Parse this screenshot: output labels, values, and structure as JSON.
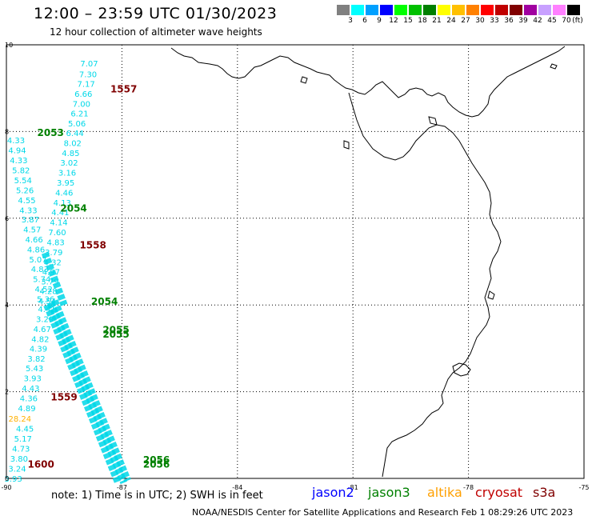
{
  "header": {
    "title": "12:00 – 23:59 UTC 01/30/2023",
    "subtitle": "12 hour collection of altimeter wave heights"
  },
  "legend": {
    "unit": "(ft)",
    "bins": [
      {
        "label": "3",
        "color": "#808080"
      },
      {
        "label": "6",
        "color": "#00ffff"
      },
      {
        "label": "9",
        "color": "#00a0ff"
      },
      {
        "label": "12",
        "color": "#0000ff"
      },
      {
        "label": "15",
        "color": "#00ff00"
      },
      {
        "label": "18",
        "color": "#00c000"
      },
      {
        "label": "21",
        "color": "#008000"
      },
      {
        "label": "24",
        "color": "#ffff00"
      },
      {
        "label": "27",
        "color": "#ffc000"
      },
      {
        "label": "30",
        "color": "#ff8000"
      },
      {
        "label": "33",
        "color": "#ff0000"
      },
      {
        "label": "36",
        "color": "#c00000"
      },
      {
        "label": "39",
        "color": "#800000"
      },
      {
        "label": "42",
        "color": "#a000a0"
      },
      {
        "label": "45",
        "color": "#c8a0ff"
      },
      {
        "label": "70",
        "color": "#ff80ff"
      },
      {
        "label": "",
        "color": "#000000"
      }
    ]
  },
  "map": {
    "x_ticks": [
      "-90",
      "-87",
      "-84",
      "-81",
      "-78",
      "-75"
    ],
    "y_ticks": [
      "0",
      "2",
      "4",
      "6",
      "8",
      "10"
    ],
    "colors": {
      "cyan": "#00d8e8",
      "gold": "#ffb000",
      "green": "#008000",
      "darkred": "#800000"
    },
    "pass_labels": [
      {
        "text": "1557",
        "color": "darkred",
        "lon": -87.3,
        "lat": 8.9
      },
      {
        "text": "2053",
        "color": "green",
        "lon": -89.2,
        "lat": 7.9
      },
      {
        "text": "2054",
        "color": "green",
        "lon": -88.6,
        "lat": 6.15
      },
      {
        "text": "1558",
        "color": "darkred",
        "lon": -88.1,
        "lat": 5.3
      },
      {
        "text": "2054",
        "color": "green",
        "lon": -87.8,
        "lat": 4.0
      },
      {
        "text": "2055",
        "color": "green",
        "lon": -87.5,
        "lat": 3.35
      },
      {
        "text": "2055",
        "color": "green",
        "lon": -87.5,
        "lat": 3.25
      },
      {
        "text": "1559",
        "color": "darkred",
        "lon": -88.85,
        "lat": 1.8
      },
      {
        "text": "1600",
        "color": "darkred",
        "lon": -89.45,
        "lat": 0.25
      },
      {
        "text": "2056",
        "color": "green",
        "lon": -86.45,
        "lat": 0.35
      },
      {
        "text": "2056",
        "color": "green",
        "lon": -86.45,
        "lat": 0.25
      }
    ],
    "wave_values": [
      {
        "text": "7.07",
        "lon": -87.85,
        "lat": 9.5
      },
      {
        "text": "7.30",
        "lon": -87.88,
        "lat": 9.25
      },
      {
        "text": "7.17",
        "lon": -87.93,
        "lat": 9.03
      },
      {
        "text": "6.66",
        "lon": -88.0,
        "lat": 8.8
      },
      {
        "text": "7.00",
        "lon": -88.05,
        "lat": 8.57
      },
      {
        "text": "6.21",
        "lon": -88.1,
        "lat": 8.35
      },
      {
        "text": "5.06",
        "lon": -88.17,
        "lat": 8.12
      },
      {
        "text": "6.44",
        "lon": -88.22,
        "lat": 7.9
      },
      {
        "text": "8.02",
        "lon": -88.28,
        "lat": 7.67
      },
      {
        "text": "4.85",
        "lon": -88.33,
        "lat": 7.44
      },
      {
        "text": "3.02",
        "lon": -88.37,
        "lat": 7.21
      },
      {
        "text": "3.16",
        "lon": -88.42,
        "lat": 6.98
      },
      {
        "text": "3.95",
        "lon": -88.46,
        "lat": 6.75
      },
      {
        "text": "4.46",
        "lon": -88.5,
        "lat": 6.52
      },
      {
        "text": "4.13",
        "lon": -88.55,
        "lat": 6.29
      },
      {
        "text": "4.41",
        "lon": -88.6,
        "lat": 6.07
      },
      {
        "text": "4.14",
        "lon": -88.64,
        "lat": 5.84
      },
      {
        "text": "7.60",
        "lon": -88.68,
        "lat": 5.61
      },
      {
        "text": "4.83",
        "lon": -88.72,
        "lat": 5.38
      },
      {
        "text": "3.79",
        "lon": -88.77,
        "lat": 5.15
      },
      {
        "text": "4.32",
        "lon": -88.8,
        "lat": 4.92
      },
      {
        "text": "4.97",
        "lon": -88.84,
        "lat": 4.7
      },
      {
        "text": "3.79",
        "lon": -88.87,
        "lat": 4.47
      },
      {
        "text": "4.28",
        "lon": -88.91,
        "lat": 4.25
      },
      {
        "text": "4.54",
        "lon": -88.94,
        "lat": 4.02
      },
      {
        "text": "4.33",
        "lon": -89.75,
        "lat": 7.73
      },
      {
        "text": "4.94",
        "lon": -89.72,
        "lat": 7.5
      },
      {
        "text": "4.33",
        "lon": -89.68,
        "lat": 7.27
      },
      {
        "text": "5.82",
        "lon": -89.62,
        "lat": 7.04
      },
      {
        "text": "5.54",
        "lon": -89.57,
        "lat": 6.81
      },
      {
        "text": "5.26",
        "lon": -89.52,
        "lat": 6.58
      },
      {
        "text": "4.55",
        "lon": -89.47,
        "lat": 6.35
      },
      {
        "text": "4.33",
        "lon": -89.43,
        "lat": 6.12
      },
      {
        "text": "3.87",
        "lon": -89.38,
        "lat": 5.9
      },
      {
        "text": "4.57",
        "lon": -89.33,
        "lat": 5.67
      },
      {
        "text": "4.66",
        "lon": -89.28,
        "lat": 5.44
      },
      {
        "text": "4.86",
        "lon": -89.23,
        "lat": 5.21
      },
      {
        "text": "5.07",
        "lon": -89.18,
        "lat": 4.98
      },
      {
        "text": "4.83",
        "lon": -89.13,
        "lat": 4.76
      },
      {
        "text": "5.74",
        "lon": -89.08,
        "lat": 4.53
      },
      {
        "text": "4.52",
        "lon": -89.03,
        "lat": 4.3
      },
      {
        "text": "5.36",
        "lon": -88.98,
        "lat": 4.07
      },
      {
        "text": "4.41",
        "lon": -88.95,
        "lat": 3.84
      },
      {
        "text": "3.29",
        "lon": -89.0,
        "lat": 3.61
      },
      {
        "text": "4.67",
        "lon": -89.07,
        "lat": 3.38
      },
      {
        "text": "4.82",
        "lon": -89.12,
        "lat": 3.15
      },
      {
        "text": "4.39",
        "lon": -89.17,
        "lat": 2.92
      },
      {
        "text": "3.82",
        "lon": -89.22,
        "lat": 2.69
      },
      {
        "text": "5.43",
        "lon": -89.27,
        "lat": 2.47
      },
      {
        "text": "3.93",
        "lon": -89.32,
        "lat": 2.24
      },
      {
        "text": "4.43",
        "lon": -89.37,
        "lat": 2.01
      },
      {
        "text": "4.36",
        "lon": -89.42,
        "lat": 1.78
      },
      {
        "text": "4.89",
        "lon": -89.47,
        "lat": 1.55
      },
      {
        "text": "4.45",
        "lon": -89.52,
        "lat": 1.08
      },
      {
        "text": "5.17",
        "lon": -89.57,
        "lat": 0.85
      },
      {
        "text": "4.73",
        "lon": -89.62,
        "lat": 0.62
      },
      {
        "text": "3.80",
        "lon": -89.67,
        "lat": 0.39
      },
      {
        "text": "3.24",
        "lon": -89.72,
        "lat": 0.16
      },
      {
        "text": "3.93",
        "lon": -89.82,
        "lat": -0.07
      }
    ],
    "gold_value": {
      "text": "28.24",
      "lon": -89.65,
      "lat": 1.31
    }
  },
  "footer": {
    "note": "note: 1) Time is in UTC; 2) SWH is in feet",
    "satellites": [
      {
        "label": "jason2",
        "color": "#0000ff"
      },
      {
        "label": "jason3",
        "color": "#008000"
      },
      {
        "label": "altika",
        "color": "#ffa000"
      },
      {
        "label": "cryosat",
        "color": "#c00000"
      },
      {
        "label": "s3a",
        "color": "#800000"
      }
    ],
    "credit": "NOAA/NESDIS Center for Satellite Applications and Research    Feb  1 08:29:26 UTC 2023"
  }
}
